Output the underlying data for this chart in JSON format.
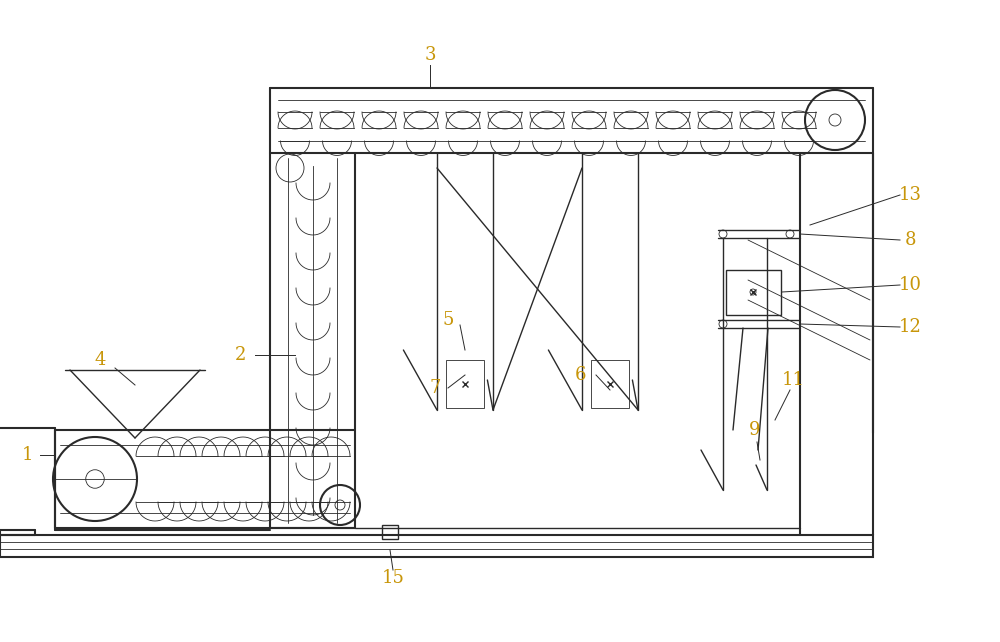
{
  "bg_color": "#ffffff",
  "line_color": "#2a2a2a",
  "label_color": "#c8960a",
  "fig_width": 10.0,
  "fig_height": 6.42,
  "dpi": 100
}
